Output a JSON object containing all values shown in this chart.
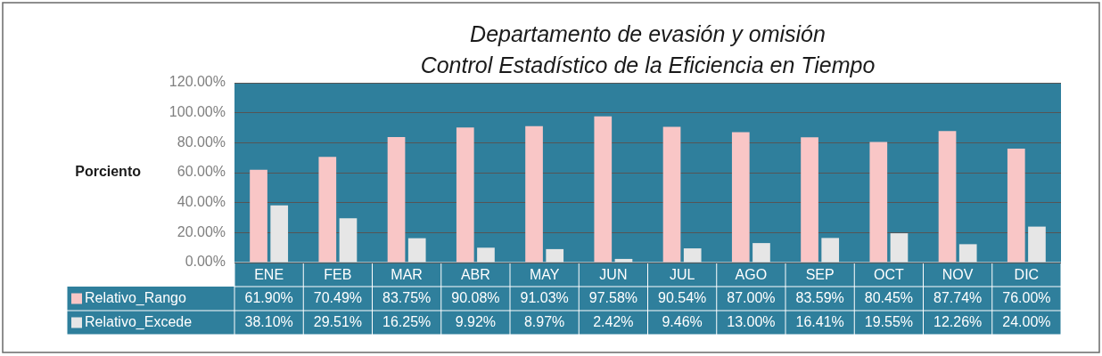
{
  "chart_data": {
    "type": "bar",
    "title": "Departamento de evasión y omisión\nControl Estadístico de la Eficiencia en Tiempo",
    "ylabel": "Porciento",
    "categories": [
      "ENE",
      "FEB",
      "MAR",
      "ABR",
      "MAY",
      "JUN",
      "JUL",
      "AGO",
      "SEP",
      "OCT",
      "NOV",
      "DIC"
    ],
    "series": [
      {
        "name": "Relativo_Rango",
        "color": "#f9c6c6",
        "values": [
          61.9,
          70.49,
          83.75,
          90.08,
          91.03,
          97.58,
          90.54,
          87.0,
          83.59,
          80.45,
          87.74,
          76.0
        ],
        "value_labels": [
          "61.90%",
          "70.49%",
          "83.75%",
          "90.08%",
          "91.03%",
          "97.58%",
          "90.54%",
          "87.00%",
          "83.59%",
          "80.45%",
          "87.74%",
          "76.00%"
        ]
      },
      {
        "name": "Relativo_Excede",
        "color": "#e6e6e6",
        "values": [
          38.1,
          29.51,
          16.25,
          9.92,
          8.97,
          2.42,
          9.46,
          13.0,
          16.41,
          19.55,
          12.26,
          24.0
        ],
        "value_labels": [
          "38.10%",
          "29.51%",
          "16.25%",
          "9.92%",
          "8.97%",
          "2.42%",
          "9.46%",
          "13.00%",
          "16.41%",
          "19.55%",
          "12.26%",
          "24.00%"
        ]
      }
    ],
    "ylim": [
      0,
      120
    ],
    "yticks": [
      {
        "value": 0,
        "label": "0.00%"
      },
      {
        "value": 20,
        "label": "20.00%"
      },
      {
        "value": 40,
        "label": "40.00%"
      },
      {
        "value": 60,
        "label": "60.00%"
      },
      {
        "value": 80,
        "label": "80.00%"
      },
      {
        "value": 100,
        "label": "100.00%"
      },
      {
        "value": 120,
        "label": "120.00%"
      }
    ],
    "grid": "y",
    "legend": "left"
  }
}
